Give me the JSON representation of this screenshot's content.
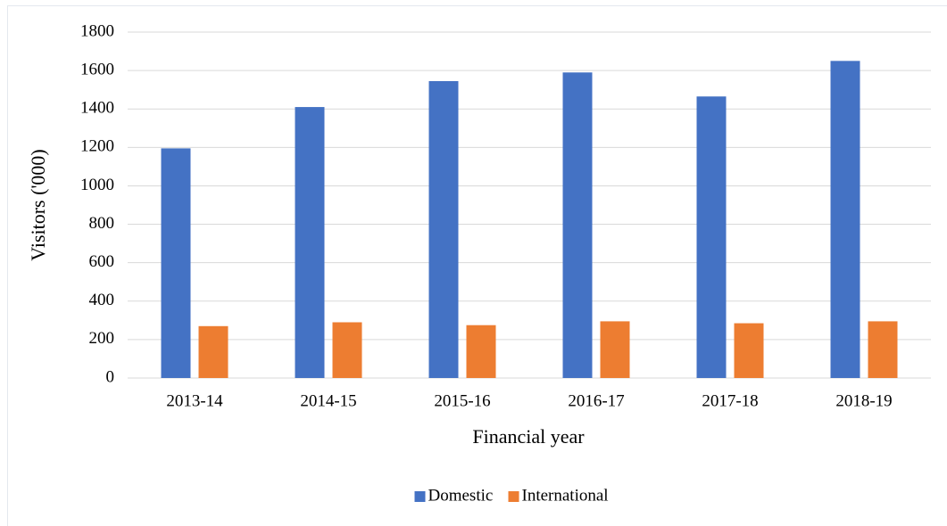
{
  "chart_data": {
    "type": "bar",
    "x_label": "Financial year",
    "y_label": "Visitors ('000)",
    "categories": [
      "2013-14",
      "2014-15",
      "2015-16",
      "2016-17",
      "2017-18",
      "2018-19"
    ],
    "series": [
      {
        "name": "Domestic",
        "color": "#4472c4",
        "values": [
          1195,
          1410,
          1545,
          1590,
          1465,
          1650
        ]
      },
      {
        "name": "International",
        "color": "#ed7d31",
        "values": [
          270,
          290,
          275,
          295,
          285,
          295
        ]
      }
    ],
    "ylim": [
      0,
      1800
    ],
    "yticks": [
      0,
      200,
      400,
      600,
      800,
      1000,
      1200,
      1400,
      1600,
      1800
    ],
    "grid": true,
    "legend": "bottom"
  }
}
